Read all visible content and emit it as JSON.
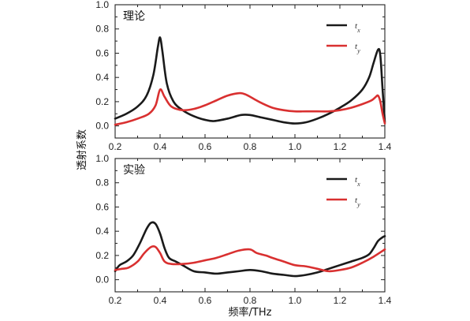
{
  "colors": {
    "tx": "#1a1a1a",
    "ty": "#d93030",
    "axis": "#222222"
  },
  "ylabel": "透射系数",
  "xlabel": "频率/THz",
  "chart_data": [
    {
      "type": "line",
      "title": "理论",
      "xlim": [
        0.2,
        1.4
      ],
      "ylim": [
        -0.1,
        1.0
      ],
      "xticks": [
        "0.2",
        "0.4",
        "0.6",
        "0.8",
        "1.0",
        "1.2",
        "1.4"
      ],
      "yticks": [
        "0.0",
        "0.2",
        "0.4",
        "0.6",
        "0.8",
        "1.0"
      ],
      "legend": [
        "tx",
        "ty"
      ],
      "legend_position": "top-right",
      "series": [
        {
          "name": "tx",
          "x": [
            0.2,
            0.25,
            0.3,
            0.34,
            0.37,
            0.39,
            0.4,
            0.41,
            0.43,
            0.46,
            0.5,
            0.55,
            0.6,
            0.64,
            0.7,
            0.76,
            0.8,
            0.85,
            0.9,
            0.95,
            1.0,
            1.05,
            1.1,
            1.15,
            1.2,
            1.25,
            1.3,
            1.33,
            1.35,
            1.37,
            1.38,
            1.39,
            1.4
          ],
          "y": [
            0.06,
            0.1,
            0.16,
            0.25,
            0.42,
            0.65,
            0.73,
            0.62,
            0.35,
            0.2,
            0.13,
            0.08,
            0.05,
            0.04,
            0.06,
            0.09,
            0.09,
            0.07,
            0.05,
            0.03,
            0.02,
            0.03,
            0.06,
            0.1,
            0.15,
            0.21,
            0.3,
            0.4,
            0.52,
            0.63,
            0.58,
            0.3,
            0.03
          ]
        },
        {
          "name": "ty",
          "x": [
            0.2,
            0.25,
            0.3,
            0.35,
            0.38,
            0.4,
            0.42,
            0.45,
            0.5,
            0.55,
            0.6,
            0.65,
            0.7,
            0.75,
            0.78,
            0.82,
            0.85,
            0.9,
            0.95,
            1.0,
            1.05,
            1.1,
            1.15,
            1.2,
            1.25,
            1.3,
            1.34,
            1.36,
            1.37,
            1.38,
            1.39,
            1.4
          ],
          "y": [
            0.01,
            0.03,
            0.06,
            0.1,
            0.17,
            0.3,
            0.24,
            0.16,
            0.13,
            0.14,
            0.17,
            0.21,
            0.25,
            0.27,
            0.26,
            0.22,
            0.19,
            0.15,
            0.13,
            0.12,
            0.12,
            0.12,
            0.12,
            0.13,
            0.15,
            0.18,
            0.21,
            0.24,
            0.25,
            0.2,
            0.1,
            0.02
          ]
        }
      ]
    },
    {
      "type": "line",
      "title": "实验",
      "xlim": [
        0.2,
        1.4
      ],
      "ylim": [
        -0.1,
        1.0
      ],
      "xticks": [
        "0.2",
        "0.4",
        "0.6",
        "0.8",
        "1.0",
        "1.2",
        "1.4"
      ],
      "yticks": [
        "0.0",
        "0.2",
        "0.4",
        "0.6",
        "0.8",
        "1.0"
      ],
      "legend": [
        "tx",
        "ty"
      ],
      "legend_position": "top-right",
      "series": [
        {
          "name": "tx",
          "x": [
            0.2,
            0.22,
            0.25,
            0.28,
            0.31,
            0.34,
            0.36,
            0.38,
            0.4,
            0.42,
            0.44,
            0.47,
            0.5,
            0.55,
            0.6,
            0.65,
            0.7,
            0.75,
            0.8,
            0.85,
            0.9,
            0.95,
            1.0,
            1.05,
            1.1,
            1.15,
            1.2,
            1.25,
            1.3,
            1.33,
            1.35,
            1.37,
            1.39,
            1.4
          ],
          "y": [
            0.07,
            0.12,
            0.15,
            0.2,
            0.3,
            0.42,
            0.47,
            0.46,
            0.38,
            0.26,
            0.18,
            0.15,
            0.12,
            0.07,
            0.06,
            0.05,
            0.06,
            0.07,
            0.08,
            0.07,
            0.05,
            0.04,
            0.03,
            0.04,
            0.06,
            0.09,
            0.12,
            0.15,
            0.18,
            0.21,
            0.26,
            0.32,
            0.35,
            0.36
          ]
        },
        {
          "name": "ty",
          "x": [
            0.2,
            0.23,
            0.26,
            0.3,
            0.33,
            0.36,
            0.38,
            0.4,
            0.42,
            0.45,
            0.5,
            0.55,
            0.6,
            0.65,
            0.7,
            0.75,
            0.8,
            0.83,
            0.87,
            0.9,
            0.95,
            1.0,
            1.05,
            1.1,
            1.15,
            1.2,
            1.25,
            1.3,
            1.35,
            1.4
          ],
          "y": [
            0.08,
            0.09,
            0.1,
            0.15,
            0.22,
            0.27,
            0.27,
            0.22,
            0.15,
            0.13,
            0.13,
            0.14,
            0.16,
            0.18,
            0.21,
            0.24,
            0.25,
            0.22,
            0.2,
            0.18,
            0.15,
            0.12,
            0.11,
            0.09,
            0.07,
            0.08,
            0.1,
            0.14,
            0.19,
            0.25
          ]
        }
      ]
    }
  ]
}
